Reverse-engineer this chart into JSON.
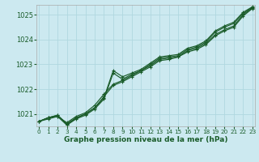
{
  "title": "Graphe pression niveau de la mer (hPa)",
  "bg_color": "#cce9f0",
  "grid_color": "#b0d8e0",
  "line_color": "#1a5c2a",
  "marker_color": "#1a5c2a",
  "ylim": [
    1020.5,
    1025.4
  ],
  "xlim": [
    -0.3,
    23.3
  ],
  "yticks": [
    1021,
    1022,
    1023,
    1024,
    1025
  ],
  "xticks": [
    0,
    1,
    2,
    3,
    4,
    5,
    6,
    7,
    8,
    9,
    10,
    11,
    12,
    13,
    14,
    15,
    16,
    17,
    18,
    19,
    20,
    21,
    22,
    23
  ],
  "series": [
    [
      1020.7,
      1020.8,
      1020.9,
      1020.65,
      1020.9,
      1021.05,
      1021.35,
      1021.8,
      1022.2,
      1022.35,
      1022.55,
      1022.75,
      1022.95,
      1023.2,
      1023.25,
      1023.3,
      1023.5,
      1023.6,
      1023.8,
      1024.15,
      1024.35,
      1024.5,
      1024.95,
      1025.25
    ],
    [
      1020.7,
      1020.85,
      1020.95,
      1020.6,
      1020.85,
      1021.0,
      1021.25,
      1021.7,
      1022.15,
      1022.3,
      1022.5,
      1022.7,
      1022.9,
      1023.15,
      1023.2,
      1023.3,
      1023.55,
      1023.65,
      1023.85,
      1024.2,
      1024.4,
      1024.55,
      1025.0,
      1025.28
    ],
    [
      1020.7,
      1020.85,
      1020.95,
      1020.58,
      1020.82,
      1021.0,
      1021.25,
      1021.65,
      1022.75,
      1022.5,
      1022.65,
      1022.8,
      1023.05,
      1023.3,
      1023.35,
      1023.4,
      1023.65,
      1023.75,
      1023.95,
      1024.35,
      1024.55,
      1024.7,
      1025.1,
      1025.32
    ],
    [
      1020.7,
      1020.85,
      1020.9,
      1020.55,
      1020.8,
      1020.95,
      1021.2,
      1021.6,
      1022.65,
      1022.4,
      1022.6,
      1022.75,
      1023.0,
      1023.25,
      1023.3,
      1023.35,
      1023.6,
      1023.7,
      1023.9,
      1024.3,
      1024.5,
      1024.65,
      1025.05,
      1025.3
    ]
  ]
}
